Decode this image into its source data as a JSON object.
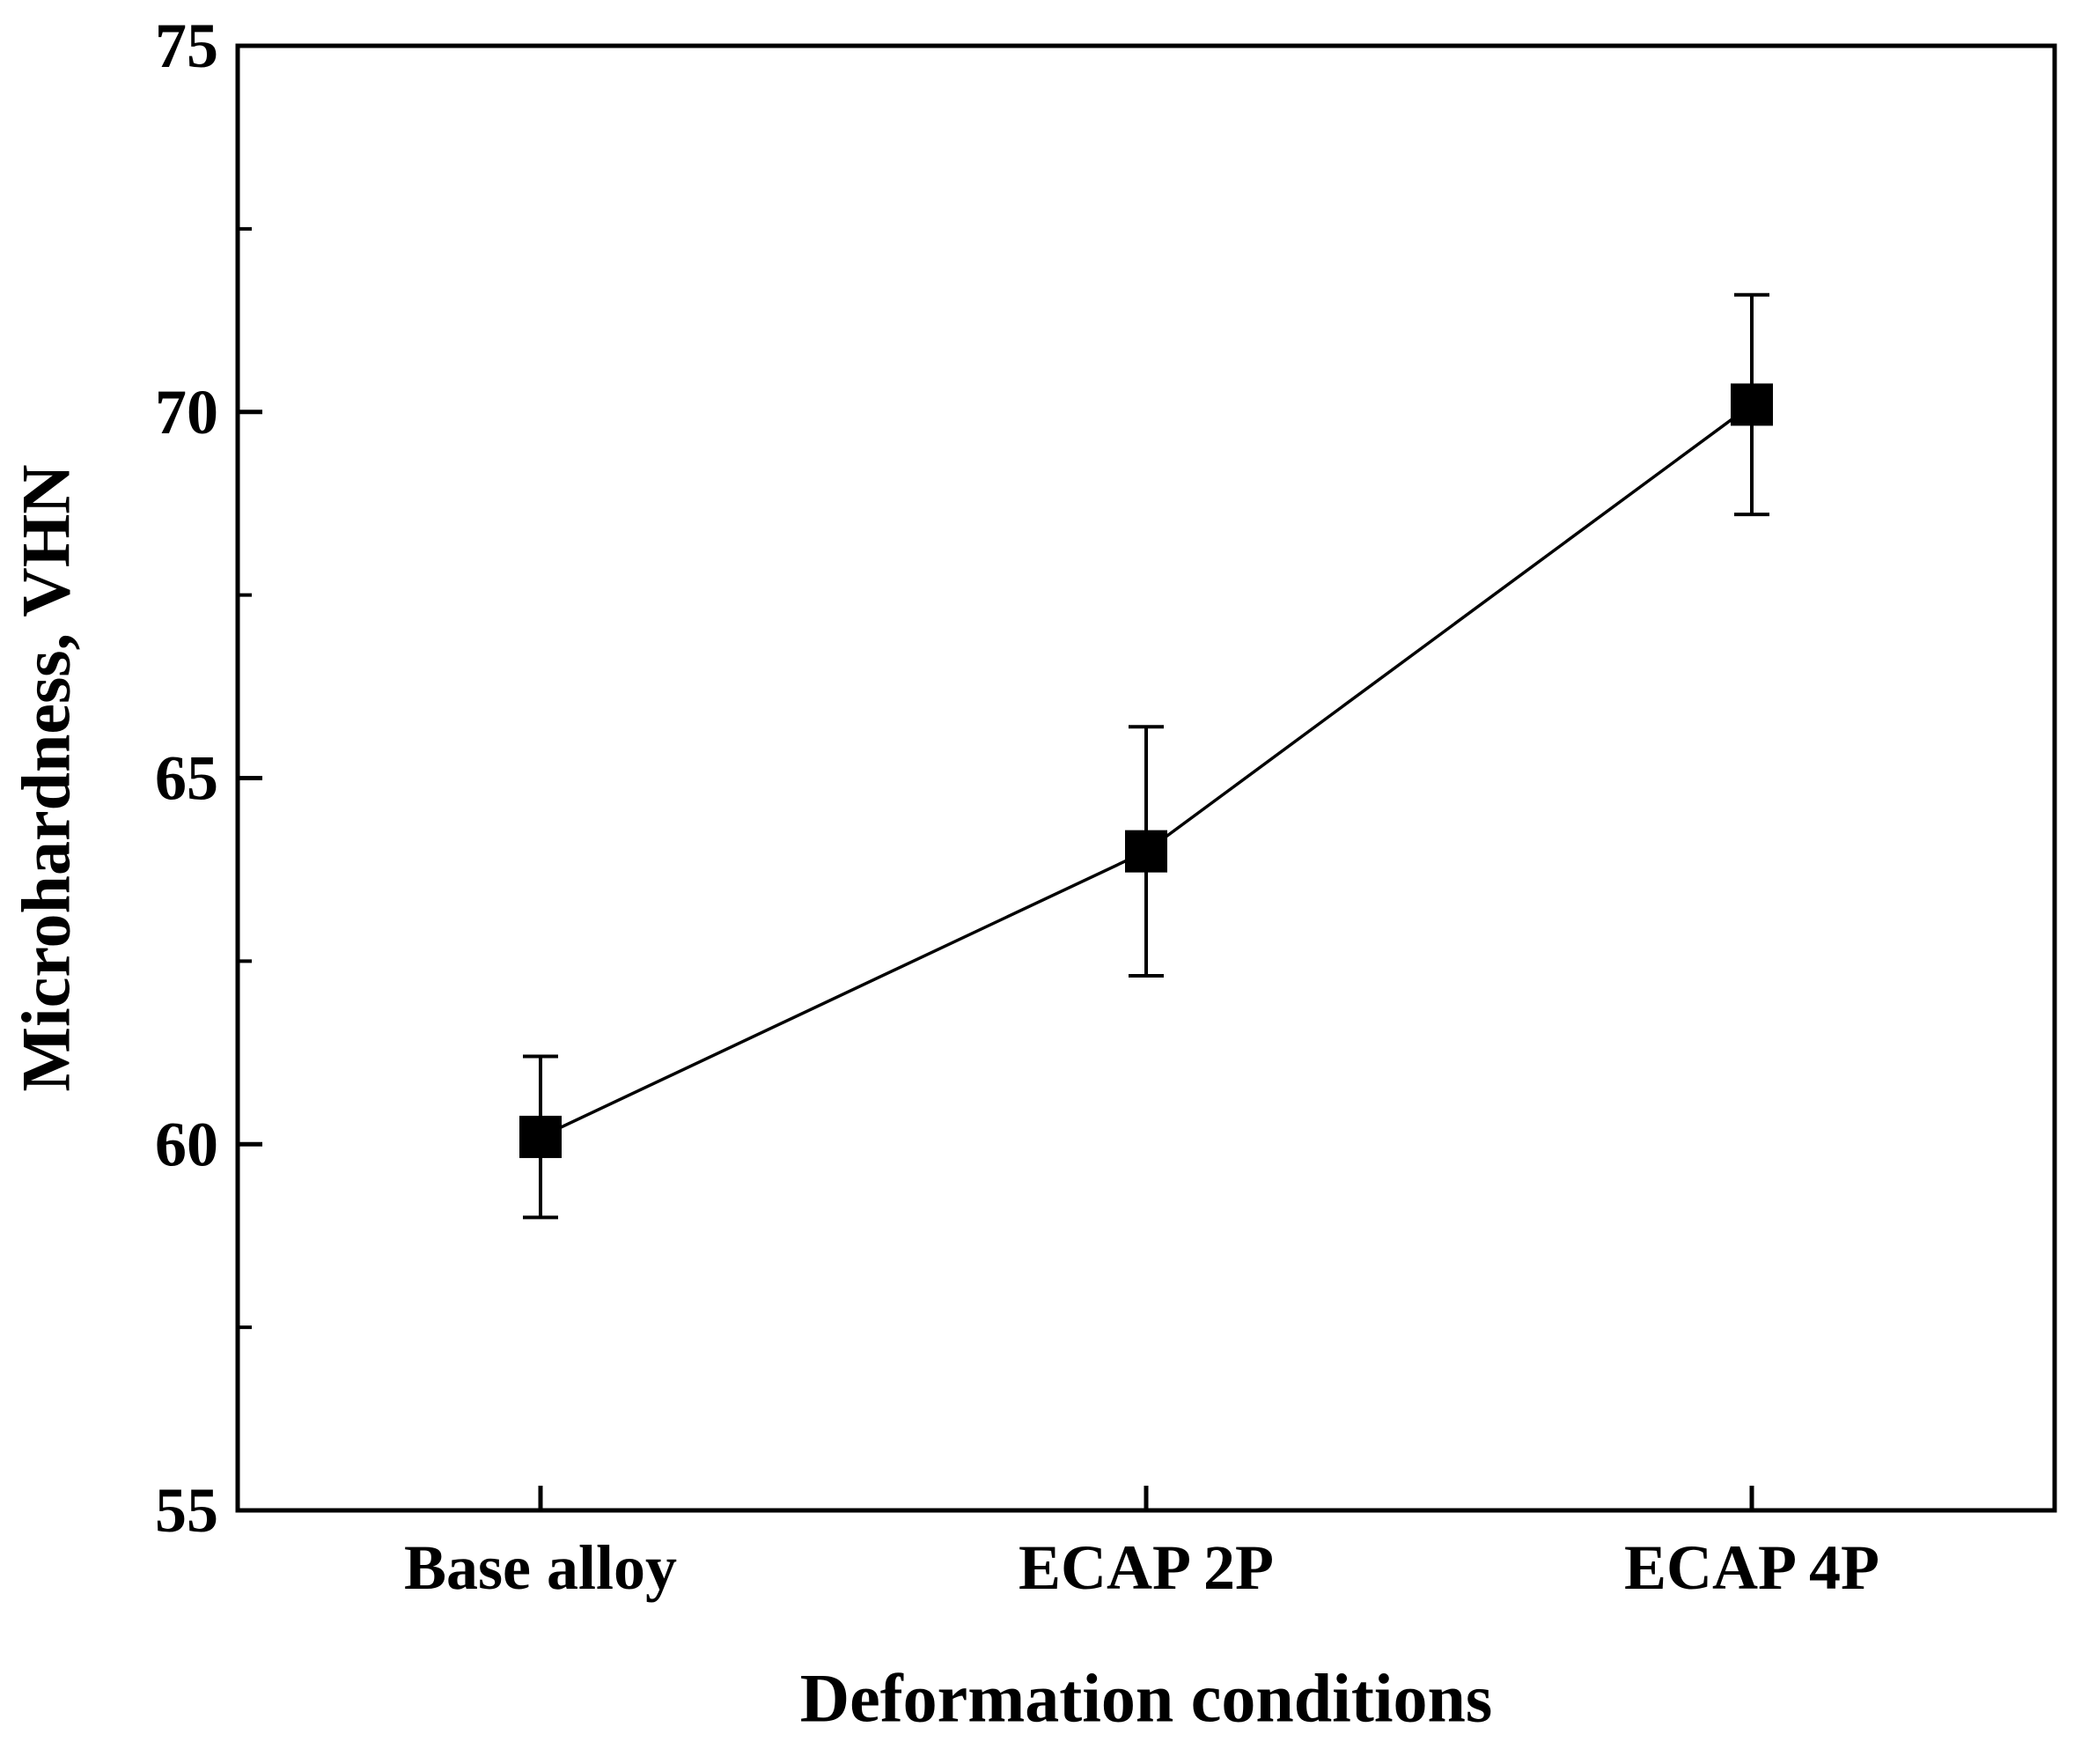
{
  "chart_data": {
    "type": "line",
    "title": "",
    "xlabel": "Deformation conditions",
    "ylabel": "Microhardness, VHN",
    "categories": [
      "Base alloy",
      "ECAP 2P",
      "ECAP 4P"
    ],
    "series": [
      {
        "name": "Microhardness",
        "values": [
          60.1,
          64.0,
          70.1
        ],
        "error_upper": [
          61.2,
          65.7,
          71.6
        ],
        "error_lower": [
          59.0,
          62.3,
          68.6
        ],
        "marker": "square",
        "color": "#000000"
      }
    ],
    "ylim": [
      55,
      75
    ],
    "yticks_major": [
      55,
      60,
      65,
      70,
      75
    ],
    "yticks_minor": [
      57.5,
      62.5,
      67.5,
      72.5
    ],
    "ytick_labels": [
      "55",
      "60",
      "65",
      "70",
      "75"
    ],
    "grid": false,
    "legend": "none"
  }
}
